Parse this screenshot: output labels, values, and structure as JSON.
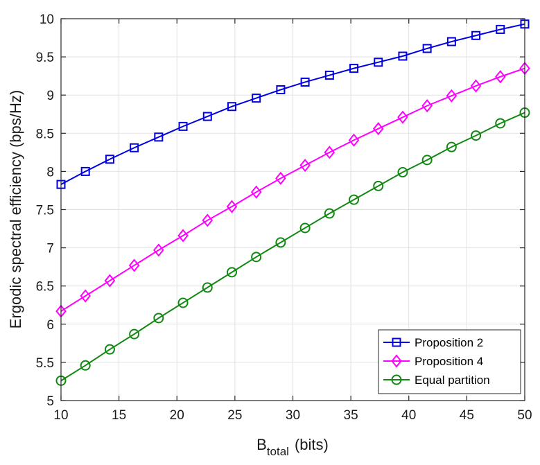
{
  "chart_data": {
    "type": "line",
    "title": "",
    "xlabel_main": "B",
    "xlabel_sub": "total",
    "xlabel_unit": "(bits)",
    "ylabel": "Ergodic spectral efficiency (bps/Hz)",
    "xlim": [
      10,
      50
    ],
    "ylim": [
      5,
      10
    ],
    "xticks": [
      "10",
      "15",
      "20",
      "25",
      "30",
      "35",
      "40",
      "45",
      "50"
    ],
    "yticks": [
      "5",
      "5.5",
      "6",
      "6.5",
      "7",
      "7.5",
      "8",
      "8.5",
      "9",
      "9.5",
      "10"
    ],
    "grid": true,
    "legend_position": "bottom-right",
    "x": [
      10,
      12.105,
      14.211,
      16.316,
      18.421,
      20.526,
      22.632,
      24.737,
      26.842,
      28.947,
      31.053,
      33.158,
      35.263,
      37.368,
      39.474,
      41.579,
      43.684,
      45.789,
      47.895,
      50
    ],
    "series": [
      {
        "name": "Proposition 2",
        "color": "#0000e0",
        "marker": "square",
        "values": [
          7.83,
          8.0,
          8.16,
          8.31,
          8.45,
          8.59,
          8.72,
          8.85,
          8.96,
          9.07,
          9.17,
          9.26,
          9.35,
          9.43,
          9.51,
          9.61,
          9.7,
          9.78,
          9.86,
          9.93
        ]
      },
      {
        "name": "Proposition 4",
        "color": "#ff00ff",
        "marker": "diamond",
        "values": [
          6.17,
          6.37,
          6.57,
          6.77,
          6.97,
          7.16,
          7.36,
          7.54,
          7.73,
          7.91,
          8.08,
          8.25,
          8.41,
          8.56,
          8.71,
          8.86,
          8.99,
          9.12,
          9.24,
          9.35
        ]
      },
      {
        "name": "Equal partition",
        "color": "#118811",
        "marker": "circle",
        "values": [
          5.26,
          5.46,
          5.67,
          5.87,
          6.08,
          6.28,
          6.48,
          6.68,
          6.88,
          7.07,
          7.26,
          7.45,
          7.63,
          7.81,
          7.99,
          8.15,
          8.32,
          8.47,
          8.63,
          8.77
        ]
      }
    ]
  }
}
